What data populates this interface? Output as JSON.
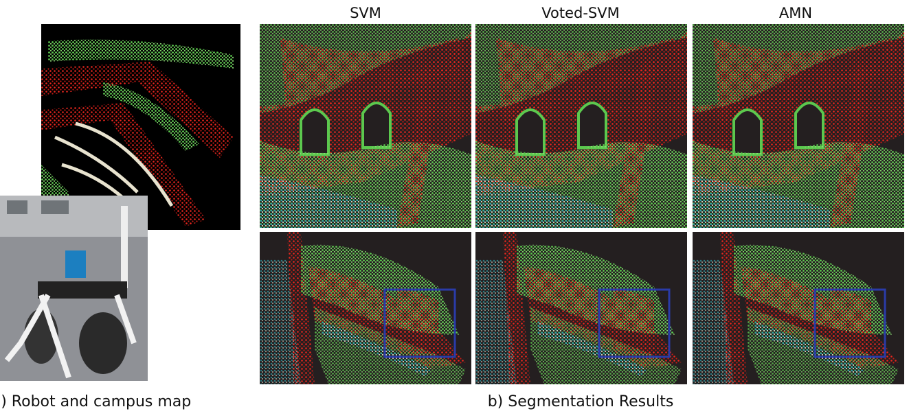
{
  "column_titles": [
    "SVM",
    "Voted-SVM",
    "AMN"
  ],
  "captions": {
    "a": "a) Robot and campus map",
    "b": "b) Segmentation Results"
  }
}
